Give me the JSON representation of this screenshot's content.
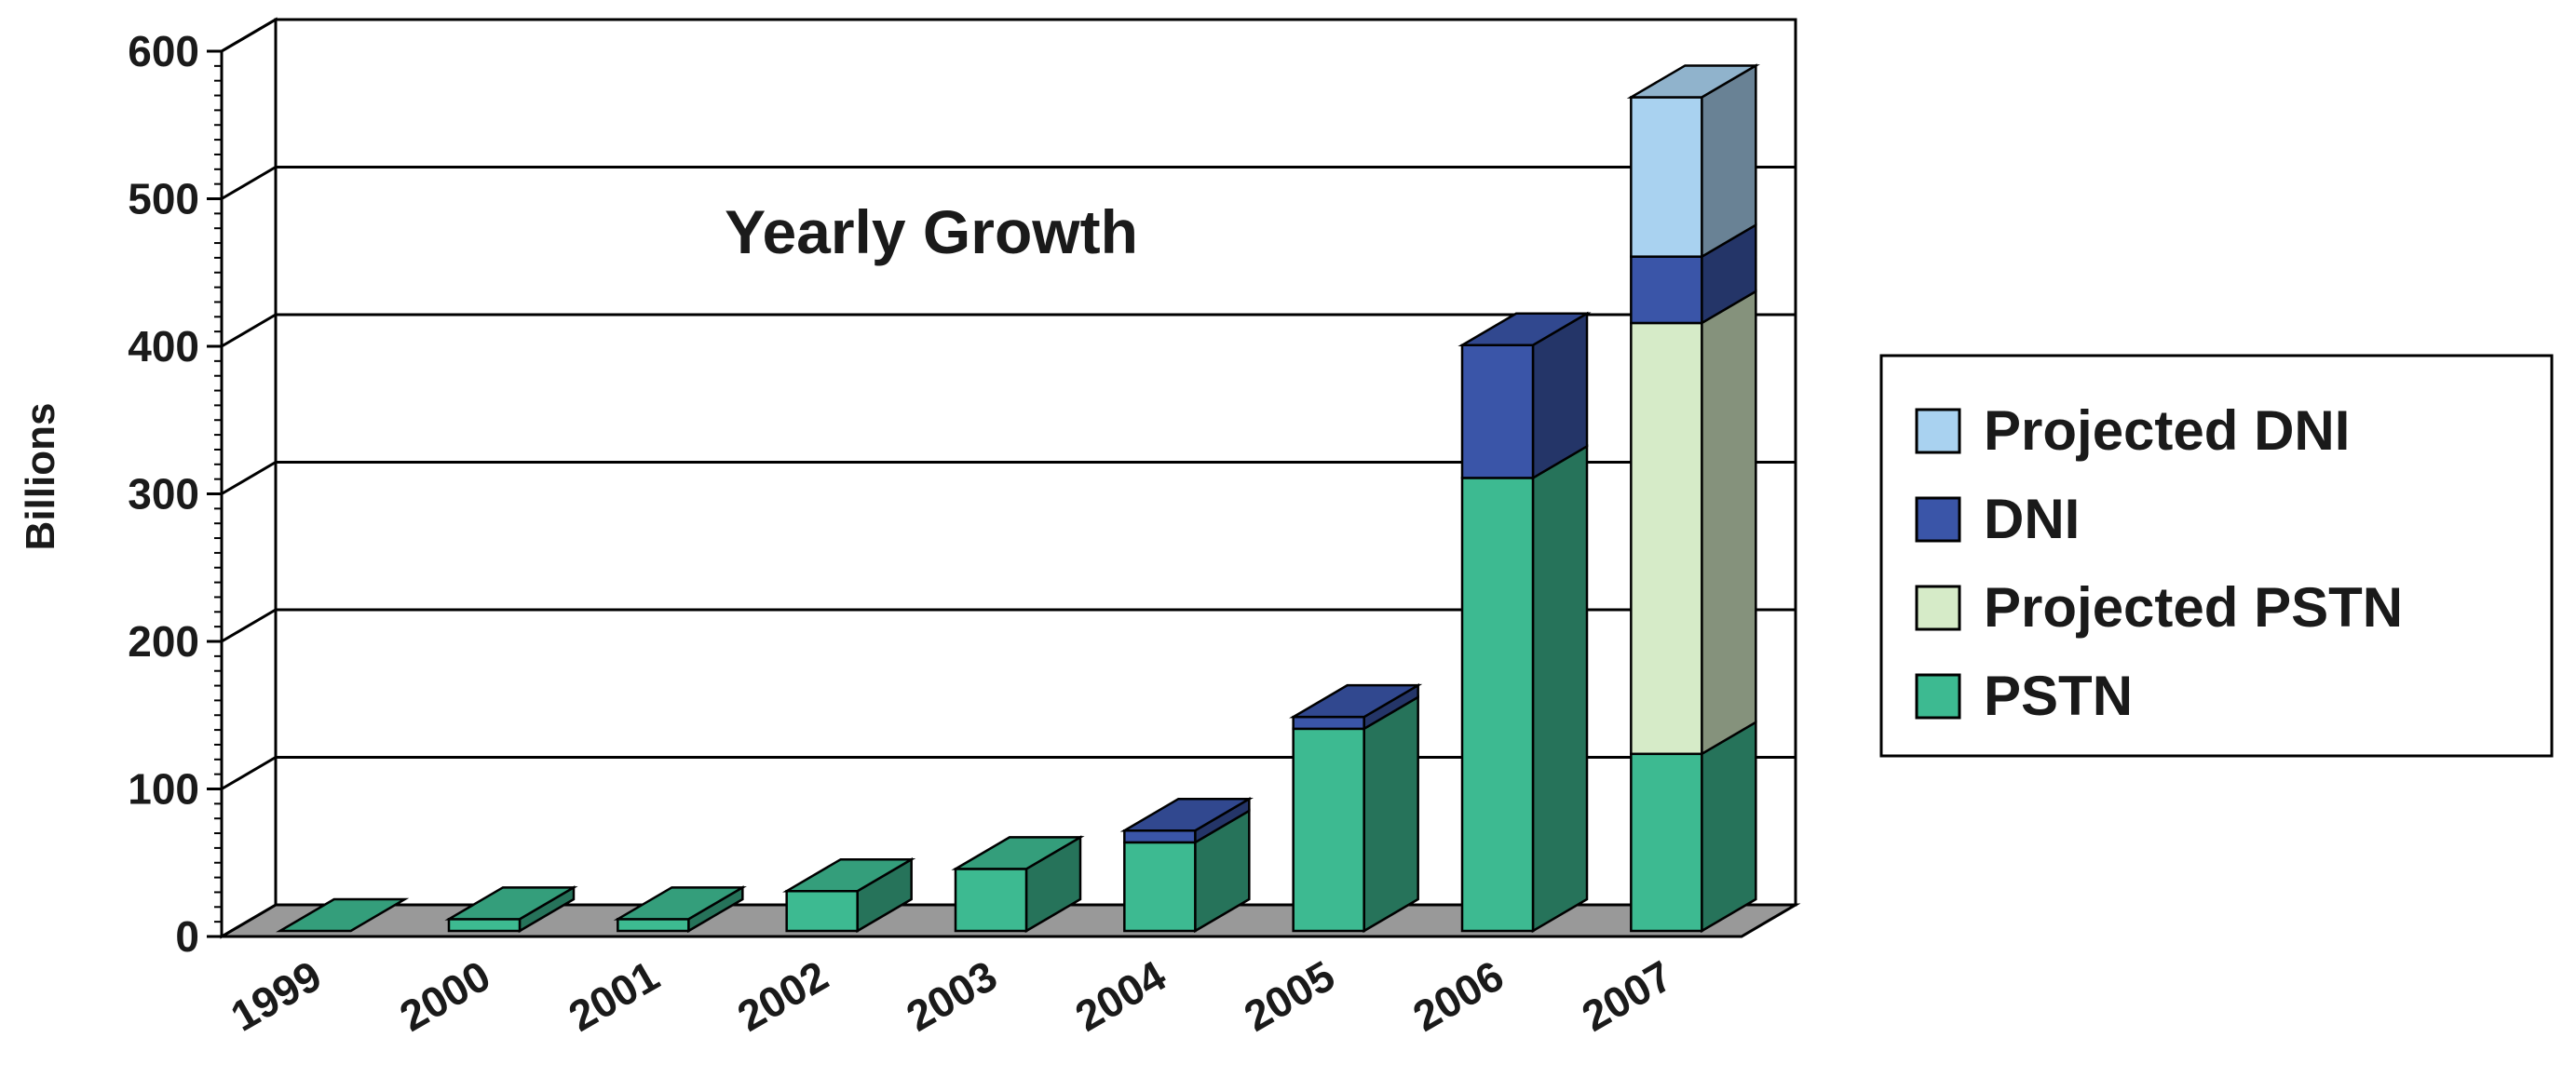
{
  "chart_data": {
    "type": "bar",
    "stacked": true,
    "three_d": true,
    "title": "Yearly Growth",
    "xlabel": "",
    "ylabel": "Billions",
    "ylim": [
      0,
      600
    ],
    "yticks": [
      0,
      100,
      200,
      300,
      400,
      500,
      600
    ],
    "grid": true,
    "legend_position": "right",
    "categories": [
      "1999",
      "2000",
      "2001",
      "2002",
      "2003",
      "2004",
      "2005",
      "2006",
      "2007"
    ],
    "series": [
      {
        "name": "PSTN",
        "color": "#3dba91",
        "values": [
          0,
          8,
          8,
          27,
          42,
          60,
          137,
          307,
          120
        ]
      },
      {
        "name": "Projected PSTN",
        "color": "#d6ebc8",
        "values": [
          0,
          0,
          0,
          0,
          0,
          0,
          0,
          0,
          292
        ]
      },
      {
        "name": "DNI",
        "color": "#3a55a8",
        "values": [
          0,
          0,
          0,
          0,
          0,
          8,
          8,
          90,
          45
        ]
      },
      {
        "name": "Projected DNI",
        "color": "#a9d2f0",
        "values": [
          0,
          0,
          0,
          0,
          0,
          0,
          0,
          0,
          108
        ]
      }
    ],
    "legend_order": [
      "Projected DNI",
      "DNI",
      "Projected PSTN",
      "PSTN"
    ]
  },
  "colors": {
    "floor": "#999999",
    "grid": "#000000",
    "wall": "#ffffff"
  }
}
